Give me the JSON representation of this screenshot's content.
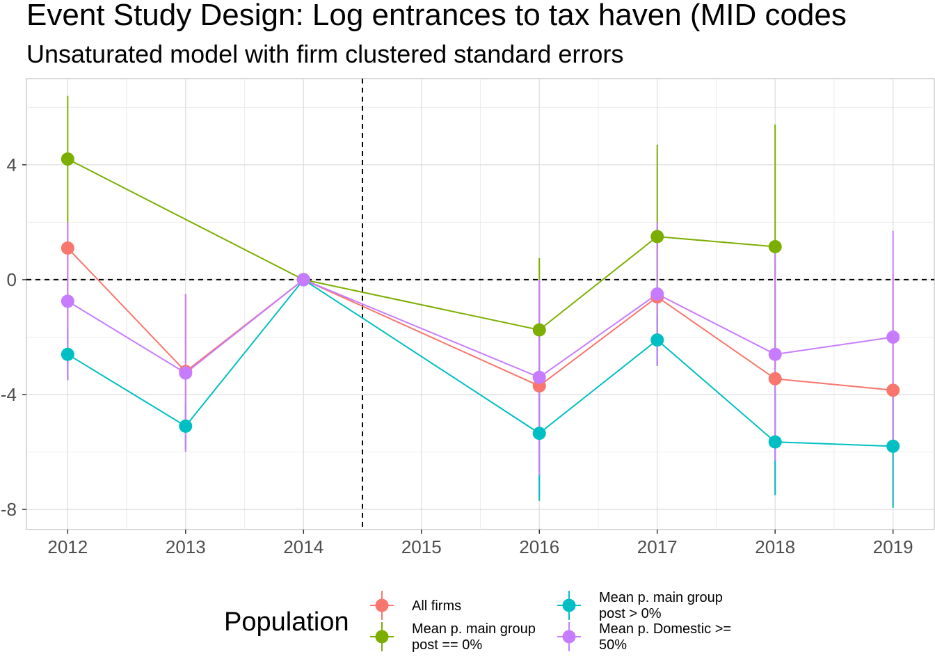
{
  "chart_data": {
    "type": "line",
    "title": "Event Study Design: Log entrances to tax haven (MID codes",
    "subtitle": "Unsaturated model with firm clustered standard errors",
    "xlabel": "",
    "ylabel": "",
    "x": [
      2012,
      2013,
      2014,
      2015,
      2016,
      2017,
      2018,
      2019
    ],
    "x_tick_labels": [
      "2012",
      "2013",
      "2014",
      "2015",
      "2016",
      "2017",
      "2018",
      "2019"
    ],
    "y_tick_labels": [
      "-8",
      "-4",
      "0",
      "4"
    ],
    "y_ticks": [
      -8,
      -4,
      0,
      4
    ],
    "xlim": [
      2011.65,
      2019.35
    ],
    "ylim": [
      -8.7,
      7.0
    ],
    "reference_lines": {
      "vertical_x": 2014.5,
      "horizontal_y": 0,
      "style": "dashed"
    },
    "grid": true,
    "legend_position": "bottom",
    "legend": {
      "title": "Population",
      "entries": [
        {
          "key": "all",
          "line1": "All firms",
          "line2": ""
        },
        {
          "key": "zero",
          "line1": "Mean p. main group",
          "line2": "post == 0%"
        },
        {
          "key": "pos",
          "line1": "Mean p. main group",
          "line2": "post > 0%"
        },
        {
          "key": "dom",
          "line1": "Mean p. Domestic >=",
          "line2": "50%"
        }
      ]
    },
    "series": [
      {
        "key": "all",
        "name": "All firms",
        "color": "#F8766D",
        "points": [
          {
            "x": 2012,
            "y": 1.1,
            "lo": -3.5,
            "hi": 2.0
          },
          {
            "x": 2013,
            "y": -3.2,
            "lo": -5.9,
            "hi": -0.5
          },
          {
            "x": 2014,
            "y": 0.0,
            "lo": 0.0,
            "hi": 0.0
          },
          {
            "x": 2016,
            "y": -3.7,
            "lo": -7.6,
            "hi": 0.0
          },
          {
            "x": 2017,
            "y": -0.6,
            "lo": -3.0,
            "hi": 1.8
          },
          {
            "x": 2018,
            "y": -3.45,
            "lo": -7.5,
            "hi": 0.6
          },
          {
            "x": 2019,
            "y": -3.85,
            "lo": -7.9,
            "hi": 0.2
          }
        ]
      },
      {
        "key": "zero",
        "name": "Mean p. main group post == 0%",
        "color": "#7CAE00",
        "points": [
          {
            "x": 2012,
            "y": 4.2,
            "lo": 2.0,
            "hi": 6.4
          },
          {
            "x": 2014,
            "y": 0.0,
            "lo": 0.0,
            "hi": 0.0
          },
          {
            "x": 2016,
            "y": -1.75,
            "lo": -4.1,
            "hi": 0.75
          },
          {
            "x": 2017,
            "y": 1.5,
            "lo": -1.6,
            "hi": 4.7
          },
          {
            "x": 2018,
            "y": 1.15,
            "lo": -3.1,
            "hi": 5.4
          }
        ]
      },
      {
        "key": "pos",
        "name": "Mean p. main group post > 0%",
        "color": "#00BFC4",
        "points": [
          {
            "x": 2012,
            "y": -2.6,
            "lo": -3.5,
            "hi": -1.7
          },
          {
            "x": 2013,
            "y": -5.1,
            "lo": -5.9,
            "hi": -4.3
          },
          {
            "x": 2014,
            "y": 0.0,
            "lo": 0.0,
            "hi": 0.0
          },
          {
            "x": 2016,
            "y": -5.35,
            "lo": -7.7,
            "hi": -3.0
          },
          {
            "x": 2017,
            "y": -2.1,
            "lo": -3.0,
            "hi": -1.2
          },
          {
            "x": 2018,
            "y": -5.65,
            "lo": -7.5,
            "hi": -3.8
          },
          {
            "x": 2019,
            "y": -5.8,
            "lo": -7.95,
            "hi": -3.65
          }
        ]
      },
      {
        "key": "dom",
        "name": "Mean p. Domestic >= 50%",
        "color": "#C77CFF",
        "points": [
          {
            "x": 2012,
            "y": -0.75,
            "lo": -3.5,
            "hi": 2.0
          },
          {
            "x": 2013,
            "y": -3.25,
            "lo": -6.0,
            "hi": -0.5
          },
          {
            "x": 2014,
            "y": 0.0,
            "lo": 0.0,
            "hi": 0.0
          },
          {
            "x": 2016,
            "y": -3.4,
            "lo": -6.8,
            "hi": 0.0
          },
          {
            "x": 2017,
            "y": -0.5,
            "lo": -3.0,
            "hi": 2.0
          },
          {
            "x": 2018,
            "y": -2.6,
            "lo": -6.3,
            "hi": 1.1
          },
          {
            "x": 2019,
            "y": -2.0,
            "lo": -5.7,
            "hi": 1.7
          }
        ]
      }
    ]
  }
}
